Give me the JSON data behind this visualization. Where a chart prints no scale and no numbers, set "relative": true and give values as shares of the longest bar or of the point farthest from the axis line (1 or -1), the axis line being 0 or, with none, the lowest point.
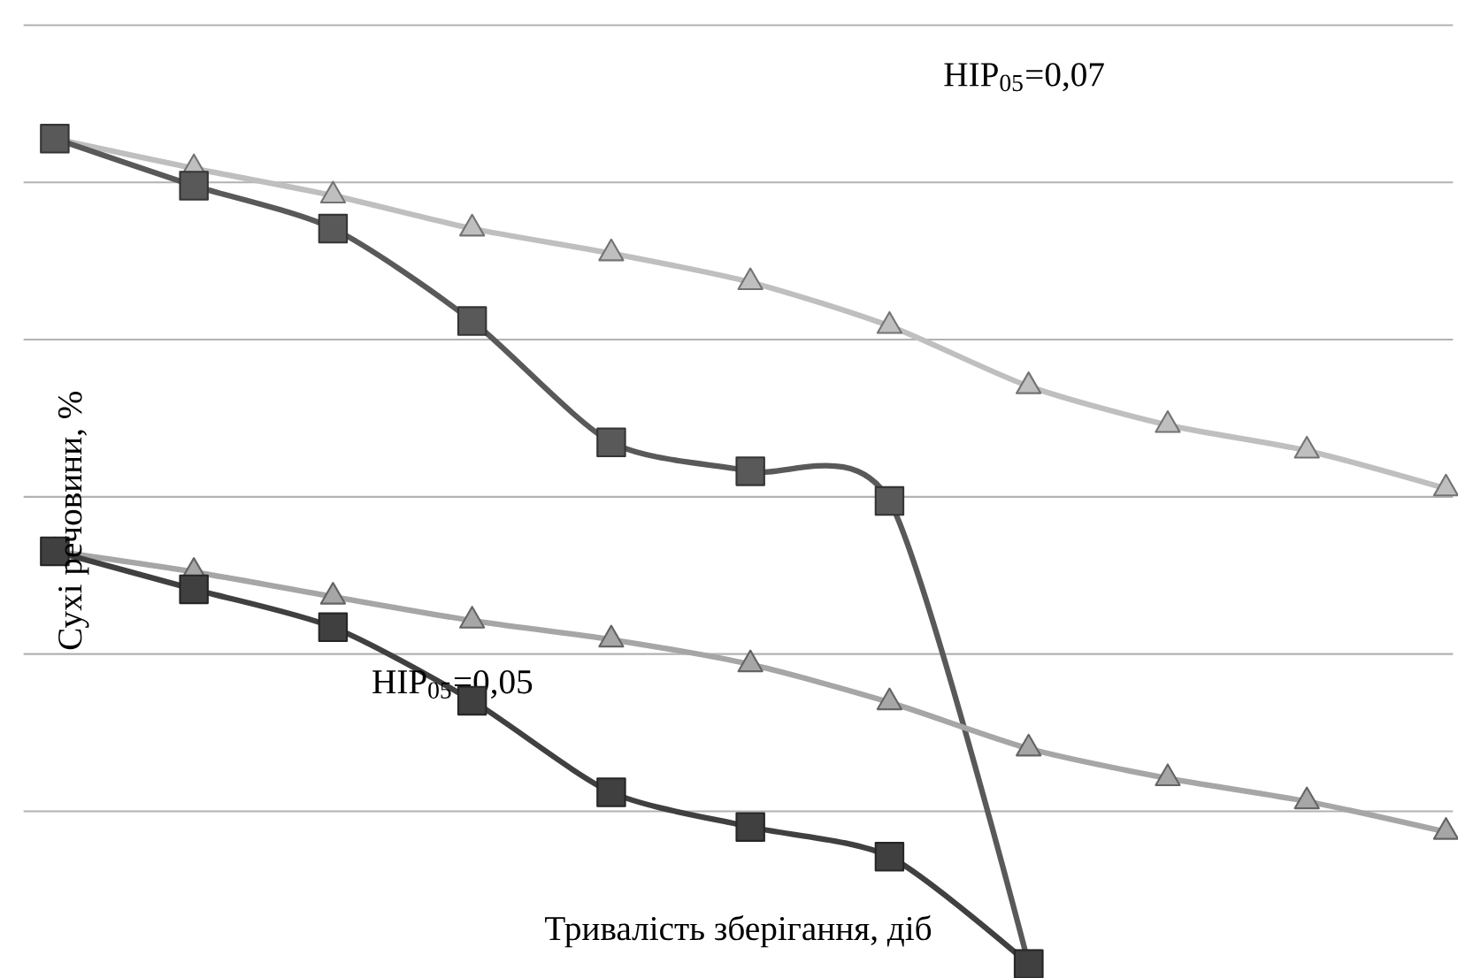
{
  "chart_data": {
    "type": "line",
    "relative": true,
    "xlabel": "Тривалість зберігання, діб",
    "ylabel": "Сухі речовини, %",
    "annotations": [
      "НІР$_{05}$=0,07",
      "НІР$_{05}$=0,05"
    ],
    "categories": [
      null,
      null,
      null,
      null,
      null,
      null,
      null,
      null,
      null,
      null,
      null
    ],
    "grid": "y",
    "tick_labels": false,
    "series": [
      {
        "color": "#bfbfbf",
        "marker": "triangle",
        "values": [
          1.0,
          0.964,
          0.931,
          0.891,
          0.861,
          0.826,
          0.773,
          0.7,
          0.653,
          0.622,
          0.576
        ]
      },
      {
        "color": "#595959",
        "marker": "square",
        "values": [
          1.0,
          0.943,
          0.891,
          0.779,
          0.632,
          0.597,
          0.561,
          0,
          null,
          null,
          null
        ]
      },
      {
        "color": "#a6a6a6",
        "marker": "triangle",
        "values": [
          0.5,
          0.475,
          0.445,
          0.416,
          0.393,
          0.363,
          0.317,
          0.261,
          0.225,
          0.197,
          0.16
        ]
      },
      {
        "color": "#404040",
        "marker": "square",
        "values": [
          0.5,
          0.454,
          0.408,
          0.319,
          0.208,
          0.166,
          0.13,
          0,
          null,
          null,
          null
        ]
      }
    ]
  }
}
